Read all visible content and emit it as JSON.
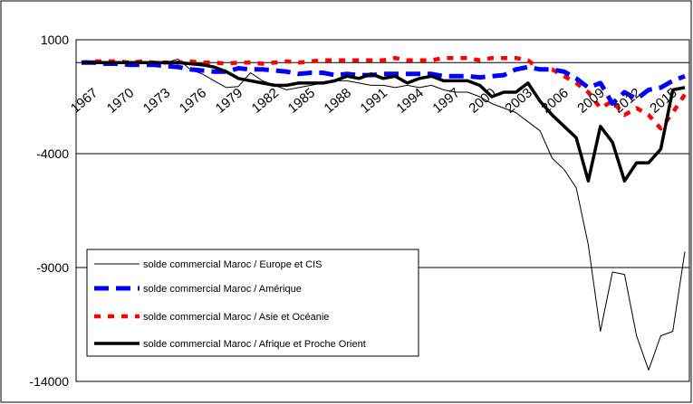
{
  "chart_data": {
    "type": "line",
    "title": "",
    "xlabel": "",
    "ylabel": "",
    "ylim": [
      -14000,
      1000
    ],
    "yticks": [
      1000,
      -4000,
      -9000,
      -14000
    ],
    "ytick_labels": [
      "1000",
      "-4000",
      "-9000",
      "-14000"
    ],
    "xtick_labels": [
      "1967",
      "1970",
      "1973",
      "1976",
      "1979",
      "1982",
      "1985",
      "1988",
      "1991",
      "1994",
      "1997",
      "2000",
      "2003",
      "2006",
      "2009",
      "2012",
      "2015"
    ],
    "x": [
      1967,
      1968,
      1969,
      1970,
      1971,
      1972,
      1973,
      1974,
      1975,
      1976,
      1977,
      1978,
      1979,
      1980,
      1981,
      1982,
      1983,
      1984,
      1985,
      1986,
      1987,
      1988,
      1989,
      1990,
      1991,
      1992,
      1993,
      1994,
      1995,
      1996,
      1997,
      1998,
      1999,
      2000,
      2001,
      2002,
      2003,
      2004,
      2005,
      2006,
      2007,
      2008,
      2009,
      2010,
      2011,
      2012,
      2013,
      2014,
      2015,
      2016,
      2017
    ],
    "grid": "horizontal",
    "legend_position": "bottom-left",
    "series": [
      {
        "name": "solde commercial Maroc / Europe et CIS",
        "color": "#000000",
        "style": "thin",
        "values": [
          0,
          0,
          0,
          -50,
          0,
          -50,
          0,
          0,
          150,
          -300,
          -500,
          -800,
          -1100,
          -1050,
          -450,
          -800,
          -1000,
          -1200,
          -1100,
          -1000,
          -900,
          -800,
          -800,
          -900,
          -1000,
          -1000,
          -1100,
          -1000,
          -1100,
          -1000,
          -1200,
          -1300,
          -1300,
          -1500,
          -1800,
          -2000,
          -2200,
          -2600,
          -3000,
          -4200,
          -4700,
          -5500,
          -8000,
          -11800,
          -9200,
          -9300,
          -12000,
          -13500,
          -12000,
          -11800,
          -8300
        ]
      },
      {
        "name": "solde commercial Maroc / Amérique",
        "color": "#0000ff",
        "style": "dashed",
        "values": [
          0,
          0,
          -50,
          -50,
          -100,
          -100,
          -100,
          -150,
          -200,
          -300,
          -350,
          -400,
          -400,
          -250,
          -300,
          -300,
          -350,
          -400,
          -500,
          -450,
          -450,
          -550,
          -500,
          -550,
          -550,
          -500,
          -500,
          -500,
          -500,
          -500,
          -600,
          -600,
          -600,
          -650,
          -600,
          -550,
          -300,
          -200,
          -300,
          -300,
          -400,
          -700,
          -1100,
          -900,
          -1800,
          -1300,
          -1600,
          -1200,
          -1100,
          -800,
          -600
        ]
      },
      {
        "name": "solde commercial Maroc / Asie et Océanie",
        "color": "#ff0000",
        "style": "dotted",
        "values": [
          0,
          50,
          50,
          50,
          0,
          50,
          0,
          0,
          0,
          50,
          0,
          0,
          -50,
          0,
          0,
          -50,
          0,
          50,
          0,
          50,
          100,
          100,
          100,
          100,
          100,
          100,
          200,
          100,
          100,
          100,
          200,
          200,
          200,
          100,
          200,
          200,
          200,
          100,
          -300,
          -300,
          -600,
          -900,
          -1300,
          -2000,
          -1700,
          -2300,
          -2000,
          -2300,
          -2900,
          -2200,
          -1400
        ]
      },
      {
        "name": "solde commercial Maroc / Afrique et Proche Orient",
        "color": "#000000",
        "style": "thick",
        "values": [
          0,
          0,
          0,
          0,
          0,
          0,
          0,
          0,
          0,
          -50,
          -100,
          -200,
          -400,
          -700,
          -800,
          -900,
          -1000,
          -1000,
          -900,
          -900,
          -900,
          -800,
          -600,
          -700,
          -500,
          -700,
          -600,
          -900,
          -700,
          -600,
          -800,
          -800,
          -800,
          -1000,
          -1500,
          -1300,
          -1300,
          -900,
          -1700,
          -2300,
          -2800,
          -3300,
          -5200,
          -2800,
          -3500,
          -5200,
          -4400,
          -4400,
          -3800,
          -1200,
          -1100
        ]
      }
    ]
  }
}
